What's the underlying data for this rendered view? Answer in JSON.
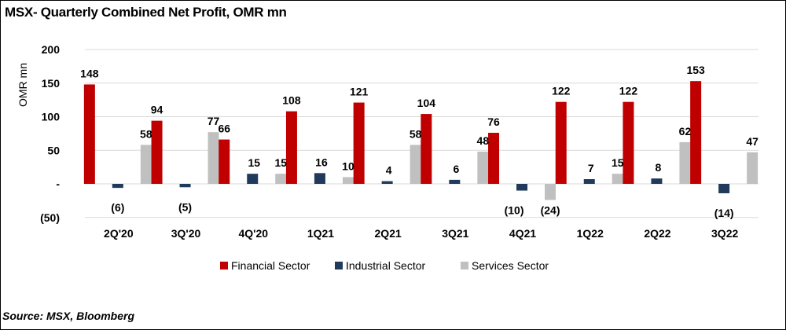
{
  "chart_data": {
    "type": "bar",
    "title": "MSX- Quarterly Combined Net Profit, OMR mn",
    "xlabel": "",
    "ylabel": "OMR mn",
    "ylim": [
      -50,
      200
    ],
    "yticks": [
      200,
      150,
      100,
      50,
      0,
      -50
    ],
    "ytick_labels": [
      "200",
      "150",
      "100",
      "50",
      "-",
      "(50)"
    ],
    "categories": [
      "2Q'20",
      "3Q'20",
      "4Q'20",
      "1Q21",
      "2Q21",
      "3Q21",
      "4Q21",
      "1Q22",
      "2Q22",
      "3Q22"
    ],
    "series": [
      {
        "name": "Financial Sector",
        "color": "#c00000",
        "values": [
          148,
          94,
          66,
          108,
          121,
          104,
          76,
          122,
          122,
          153
        ],
        "labels": [
          "148",
          "94",
          "66",
          "108",
          "121",
          "104",
          "76",
          "122",
          "122",
          "153"
        ]
      },
      {
        "name": "Industrial Sector",
        "color": "#1f3a5a",
        "values": [
          -6,
          -5,
          15,
          16,
          4,
          6,
          -10,
          7,
          8,
          -14
        ],
        "labels": [
          "(6)",
          "(5)",
          "15",
          "16",
          "4",
          "6",
          "(10)",
          "7",
          "8",
          "(14)"
        ]
      },
      {
        "name": "Services Sector",
        "color": "#c0c0c0",
        "values": [
          58,
          77,
          15,
          10,
          58,
          48,
          -24,
          15,
          62,
          47
        ],
        "labels": [
          "58",
          "77",
          "15",
          "10",
          "58",
          "48",
          "(24)",
          "15",
          "62",
          "47"
        ]
      }
    ],
    "grid": true,
    "legend": "bottom-center"
  },
  "source": "Source: MSX, Bloomberg"
}
